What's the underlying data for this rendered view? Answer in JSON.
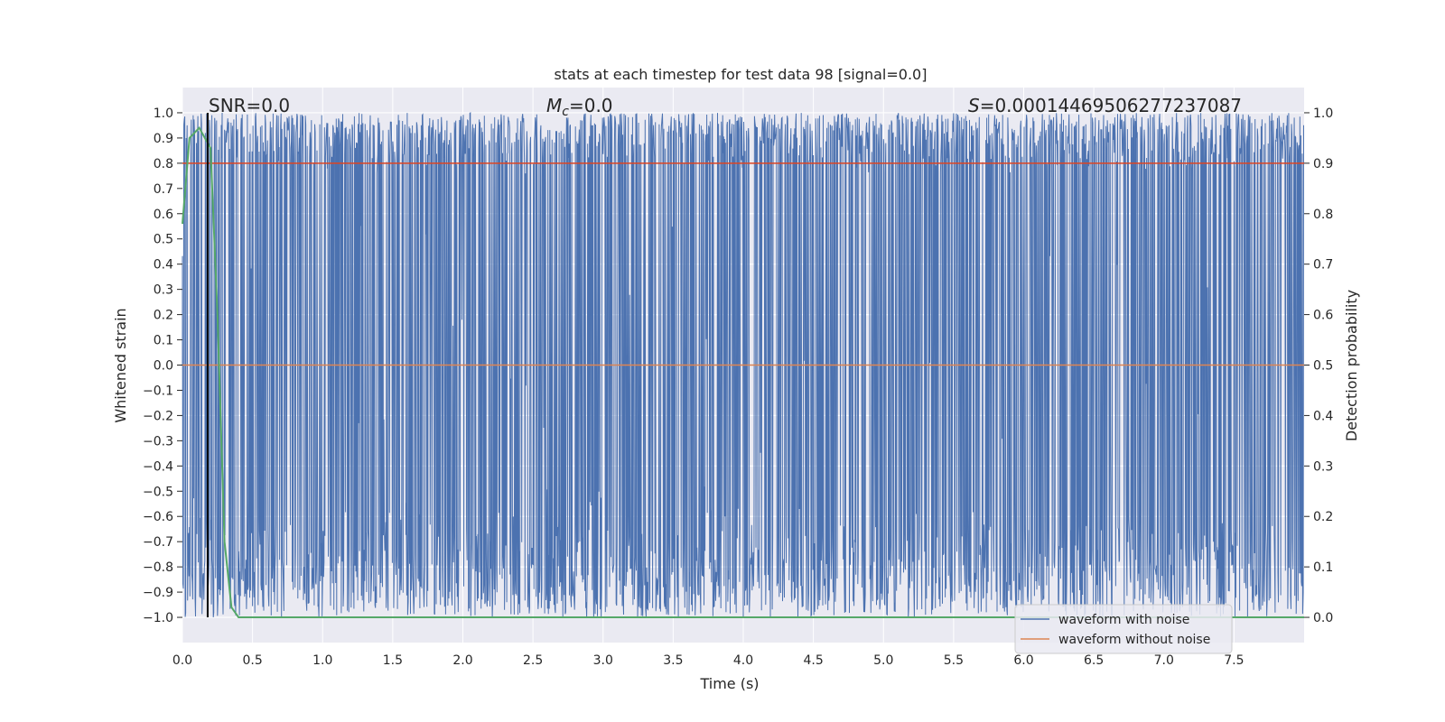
{
  "chart_data": {
    "type": "line",
    "title": "stats at each timestep for test data 98 [signal=0.0]",
    "xlabel": "Time (s)",
    "ylabel": "Whitened strain",
    "ylabel_right": "Detection probability",
    "xlim": [
      0.0,
      8.0
    ],
    "ylim": [
      -1.1,
      1.1
    ],
    "ylim_right": [
      -0.05,
      1.05
    ],
    "xticks": [
      "0.0",
      "0.5",
      "1.0",
      "1.5",
      "2.0",
      "2.5",
      "3.0",
      "3.5",
      "4.0",
      "4.5",
      "5.0",
      "5.5",
      "6.0",
      "6.5",
      "7.0",
      "7.5"
    ],
    "yticks": [
      "1.0",
      "0.9",
      "0.8",
      "0.7",
      "0.6",
      "0.5",
      "0.4",
      "0.3",
      "0.2",
      "0.1",
      "0.0",
      "−0.1",
      "−0.2",
      "−0.3",
      "−0.4",
      "−0.5",
      "−0.6",
      "−0.7",
      "−0.8",
      "−0.9",
      "−1.0"
    ],
    "yticks_right": [
      "1.0",
      "0.9",
      "0.8",
      "0.7",
      "0.6",
      "0.5",
      "0.4",
      "0.3",
      "0.2",
      "0.1",
      "0.0"
    ],
    "annotations": {
      "snr": "SNR=0.0",
      "mc_symbol": "M",
      "mc_sub": "c",
      "mc_value": "=0.0",
      "s_symbol": "S",
      "s_value": "=0.00014469506277237087"
    },
    "grid": true,
    "legend_position": "lower-right",
    "series": [
      {
        "name": "waveform with noise",
        "color": "#4c72b0",
        "description": "whitened noise spanning roughly -1.0 to 1.0 over 0-8 s"
      },
      {
        "name": "waveform without noise",
        "color": "#dd8452",
        "x": [
          0.0,
          8.0
        ],
        "y": [
          0.0,
          0.0
        ]
      },
      {
        "axis": "right",
        "color": "#55a868",
        "x": [
          0.0,
          0.05,
          0.12,
          0.2,
          0.25,
          0.3,
          0.35,
          0.4,
          8.0
        ],
        "y": [
          0.78,
          0.95,
          0.97,
          0.93,
          0.6,
          0.15,
          0.02,
          0.0,
          0.0
        ]
      },
      {
        "axis": "right",
        "color": "#dd4422",
        "x": [
          0.0,
          8.0
        ],
        "y": [
          0.9,
          0.9
        ]
      }
    ],
    "vline": {
      "x": 0.18,
      "color": "#000000"
    }
  }
}
